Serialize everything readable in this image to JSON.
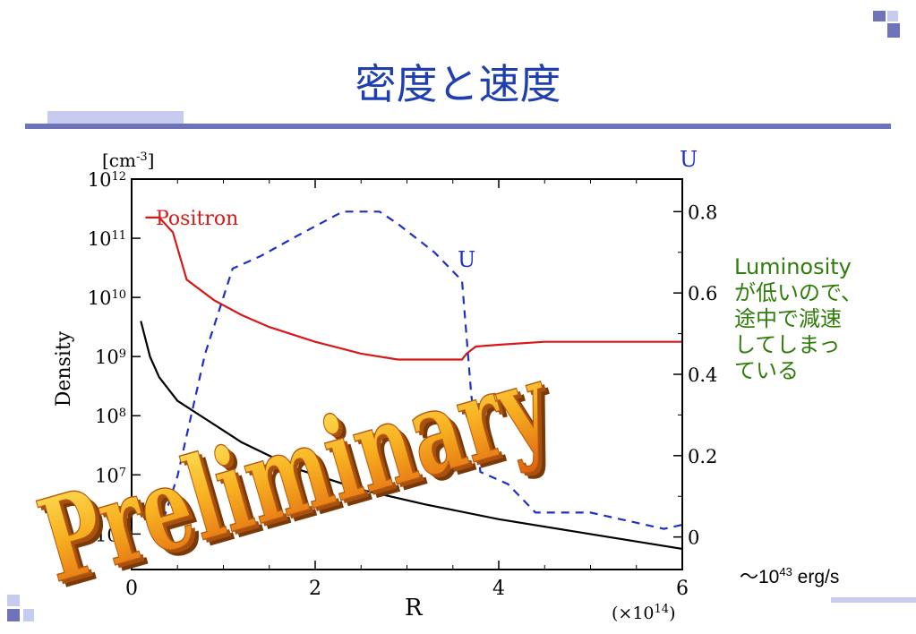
{
  "slide": {
    "title": "密度と速度",
    "note_lines": [
      "Luminosity",
      "が低いので、",
      "途中で減速",
      "してしまっ",
      "ている"
    ],
    "luminosity_prefix": "～10",
    "luminosity_exp": "43",
    "luminosity_unit": " erg/s",
    "watermark": "Preliminary",
    "colors": {
      "title": "#1f3fb0",
      "deco": "#6f73b8",
      "deco_light": "#c8cbf0",
      "note": "#2e7d0a"
    }
  },
  "chart_data": {
    "type": "line",
    "xlabel": "R",
    "x_multiplier": "(×10",
    "x_multiplier_exp": "14",
    "x_multiplier_close": ")",
    "xlim": [
      0,
      6
    ],
    "x_ticks": [
      "0",
      "2",
      "4",
      "6"
    ],
    "left_axis": {
      "label": "Density",
      "unit_prefix": "[cm",
      "unit_exp": "-3",
      "unit_close": "]",
      "scale": "log",
      "ylim_log10": [
        5.4,
        12
      ],
      "ticks": [
        {
          "base": "10",
          "exp": "12",
          "v": 12
        },
        {
          "base": "10",
          "exp": "11",
          "v": 11
        },
        {
          "base": "10",
          "exp": "10",
          "v": 10
        },
        {
          "base": "10",
          "exp": "9",
          "v": 9
        },
        {
          "base": "10",
          "exp": "8",
          "v": 8
        },
        {
          "base": "10",
          "exp": "7",
          "v": 7
        },
        {
          "base": "10",
          "exp": "6",
          "v": 6
        }
      ]
    },
    "right_axis": {
      "label": "U",
      "ylim": [
        -0.08,
        0.88
      ],
      "ticks": [
        "0",
        "0.2",
        "0.4",
        "0.6",
        "0.8"
      ]
    },
    "series": [
      {
        "name": "Positron",
        "axis": "left",
        "color": "#d81818",
        "dash": false,
        "x": [
          0.15,
          0.3,
          0.45,
          0.6,
          0.9,
          1.2,
          1.5,
          2.0,
          2.5,
          2.9,
          3.3,
          3.6,
          3.65,
          3.75,
          4.0,
          4.5,
          5.0,
          5.5,
          6.0
        ],
        "y_log10": [
          11.35,
          11.35,
          11.1,
          10.3,
          9.95,
          9.7,
          9.5,
          9.25,
          9.05,
          8.95,
          8.95,
          8.95,
          9.05,
          9.17,
          9.2,
          9.25,
          9.25,
          9.25,
          9.25
        ]
      },
      {
        "name": "U",
        "axis": "right",
        "color": "#1c30c8",
        "dash": true,
        "x": [
          0.3,
          0.5,
          0.8,
          1.1,
          1.4,
          1.8,
          2.3,
          2.7,
          2.9,
          3.3,
          3.6,
          3.7,
          3.8,
          4.1,
          4.4,
          5.0,
          5.6,
          5.8,
          6.0
        ],
        "y": [
          0.01,
          0.15,
          0.45,
          0.66,
          0.69,
          0.74,
          0.8,
          0.8,
          0.77,
          0.7,
          0.63,
          0.35,
          0.16,
          0.13,
          0.06,
          0.06,
          0.03,
          0.02,
          0.03
        ]
      },
      {
        "name": "",
        "axis": "left",
        "color": "#000000",
        "dash": false,
        "x": [
          0.1,
          0.2,
          0.3,
          0.5,
          0.8,
          1.2,
          1.8,
          2.5,
          3.2,
          4.0,
          5.0,
          6.0
        ],
        "y_log10": [
          9.6,
          9.0,
          8.65,
          8.25,
          7.95,
          7.55,
          7.1,
          6.75,
          6.5,
          6.25,
          6.0,
          5.75
        ]
      }
    ],
    "annotations": [
      {
        "text": "Positron",
        "color": "#d81818"
      },
      {
        "text": "U",
        "color": "#1c30c8"
      }
    ]
  }
}
